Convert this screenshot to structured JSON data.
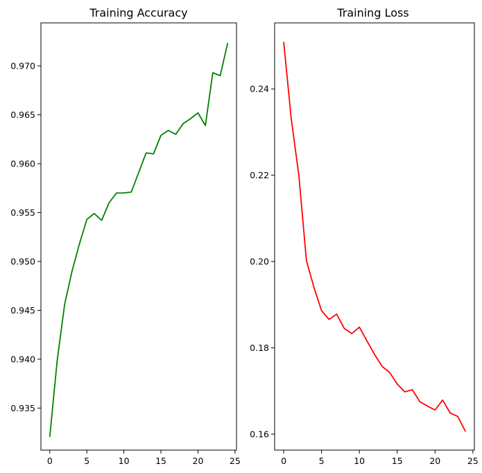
{
  "chart_data": [
    {
      "type": "line",
      "title": "Training Accuracy",
      "xlabel": "",
      "ylabel": "",
      "xlim": [
        -1.2,
        25.2
      ],
      "ylim": [
        0.9307,
        0.9744
      ],
      "xticks": [
        0,
        5,
        10,
        15,
        20,
        25
      ],
      "yticks": [
        0.935,
        0.94,
        0.945,
        0.95,
        0.955,
        0.96,
        0.965,
        0.97
      ],
      "xtick_labels": [
        "0",
        "5",
        "10",
        "15",
        "20",
        "25"
      ],
      "ytick_labels": [
        "0.935",
        "0.940",
        "0.945",
        "0.950",
        "0.955",
        "0.960",
        "0.965",
        "0.970"
      ],
      "grid": false,
      "legend": "none",
      "color": "#008000",
      "series": [
        {
          "x": [
            0,
            1,
            2,
            3,
            4,
            5,
            6,
            7,
            8,
            9,
            10,
            11,
            12,
            13,
            14,
            15,
            16,
            17,
            18,
            19,
            20,
            21,
            22,
            23,
            24
          ],
          "values": [
            0.9321,
            0.9399,
            0.9456,
            0.949,
            0.9518,
            0.9543,
            0.9549,
            0.9542,
            0.956,
            0.957,
            0.957,
            0.9571,
            0.9591,
            0.9611,
            0.961,
            0.9629,
            0.9634,
            0.963,
            0.9641,
            0.9646,
            0.9652,
            0.9639,
            0.9693,
            0.969,
            0.9723
          ]
        }
      ]
    },
    {
      "type": "line",
      "title": "Training Loss",
      "xlabel": "",
      "ylabel": "",
      "xlim": [
        -1.2,
        25.2
      ],
      "ylim": [
        0.1563,
        0.2553
      ],
      "xticks": [
        0,
        5,
        10,
        15,
        20,
        25
      ],
      "yticks": [
        0.16,
        0.18,
        0.2,
        0.22,
        0.24
      ],
      "xtick_labels": [
        "0",
        "5",
        "10",
        "15",
        "20",
        "25"
      ],
      "ytick_labels": [
        "0.16",
        "0.18",
        "0.20",
        "0.22",
        "0.24"
      ],
      "grid": false,
      "legend": "none",
      "color": "#ff0000",
      "series": [
        {
          "x": [
            0,
            1,
            2,
            3,
            4,
            5,
            6,
            7,
            8,
            9,
            10,
            11,
            12,
            13,
            14,
            15,
            16,
            17,
            18,
            19,
            20,
            21,
            22,
            23,
            24
          ],
          "values": [
            0.2508,
            0.233,
            0.22,
            0.2002,
            0.194,
            0.1886,
            0.1866,
            0.1878,
            0.1845,
            0.1833,
            0.1848,
            0.1816,
            0.1785,
            0.1757,
            0.1743,
            0.1716,
            0.1698,
            0.1703,
            0.1675,
            0.1665,
            0.1656,
            0.1679,
            0.1649,
            0.1641,
            0.1607
          ]
        }
      ]
    }
  ]
}
